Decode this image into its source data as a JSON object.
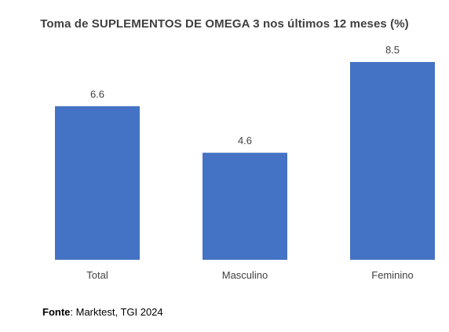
{
  "chart_data": {
    "type": "bar",
    "title": "Toma de SUPLEMENTOS DE OMEGA 3 nos últimos 12 meses (%)",
    "categories": [
      "Total",
      "Masculino",
      "Feminino"
    ],
    "values": [
      6.6,
      4.6,
      8.5
    ],
    "data_labels": [
      "6.6",
      "4.6",
      "8.5"
    ],
    "xlabel": "",
    "ylabel": "",
    "ylim": [
      0,
      8.5
    ],
    "grid": false,
    "legend": "none",
    "bar_color": "#4472C4",
    "label_color": "#404040"
  },
  "source": {
    "prefix": "Fonte",
    "text": ": Marktest, TGI 2024"
  }
}
